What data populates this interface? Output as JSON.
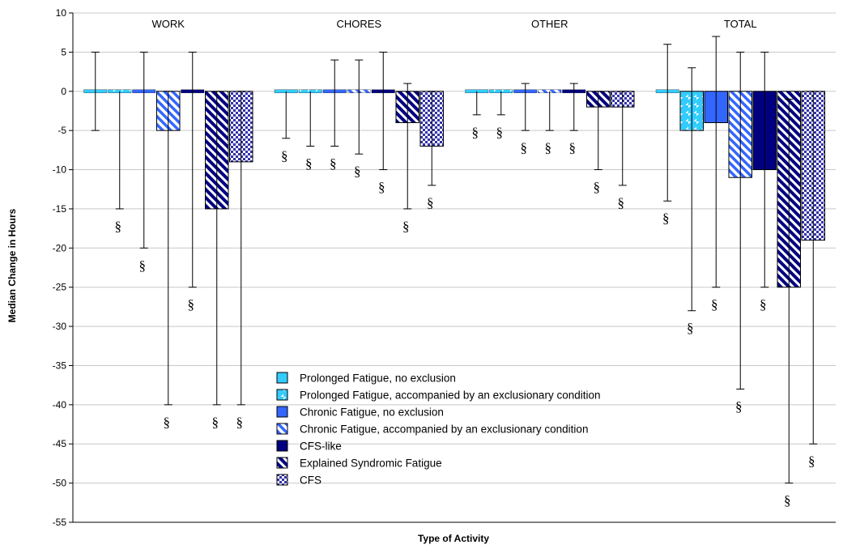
{
  "chart_data": {
    "type": "bar",
    "ylabel": "Median Change in Hours",
    "xlabel": "Type of Activity",
    "ylim": [
      -55,
      10
    ],
    "yticks": [
      10,
      5,
      0,
      -5,
      -10,
      -15,
      -20,
      -25,
      -30,
      -35,
      -40,
      -45,
      -50,
      -55
    ],
    "grid": true,
    "legend_position": "bottom-center",
    "categories": [
      "WORK",
      "CHORES",
      "OTHER",
      "TOTAL"
    ],
    "significance_marker": "§",
    "series": [
      {
        "name": "Prolonged Fatigue, no exclusion",
        "fill": "solid",
        "color": "#33ccff",
        "values": [
          0,
          0,
          0,
          0
        ],
        "error_low": [
          -5,
          -6,
          -3,
          -14
        ],
        "error_high": [
          5,
          0,
          0,
          6
        ],
        "significant": [
          false,
          true,
          true,
          true
        ]
      },
      {
        "name": "Prolonged Fatigue, accompanied by an exclusionary condition",
        "fill": "hatch-light",
        "color": "#33ccff",
        "values": [
          0,
          0,
          0,
          -5
        ],
        "error_low": [
          -15,
          -7,
          -3,
          -28
        ],
        "error_high": [
          0,
          0,
          0,
          3
        ],
        "significant": [
          true,
          true,
          true,
          true
        ]
      },
      {
        "name": "Chronic Fatigue, no exclusion",
        "fill": "solid",
        "color": "#3366ff",
        "values": [
          0,
          0,
          0,
          -4
        ],
        "error_low": [
          -20,
          -7,
          -5,
          -25
        ],
        "error_high": [
          5,
          4,
          1,
          7
        ],
        "significant": [
          true,
          true,
          true,
          true
        ]
      },
      {
        "name": "Chronic Fatigue, accompanied by an exclusionary condition",
        "fill": "hatch-medium",
        "color": "#3366ff",
        "values": [
          -5,
          0,
          0,
          -11
        ],
        "error_low": [
          -40,
          -8,
          -5,
          -38
        ],
        "error_high": [
          0,
          4,
          0,
          5
        ],
        "significant": [
          true,
          true,
          true,
          true
        ]
      },
      {
        "name": "CFS-like",
        "fill": "solid",
        "color": "#000080",
        "values": [
          0,
          0,
          0,
          -10
        ],
        "error_low": [
          -25,
          -10,
          -5,
          -25
        ],
        "error_high": [
          5,
          5,
          1,
          5
        ],
        "significant": [
          true,
          true,
          true,
          true
        ]
      },
      {
        "name": "Explained Syndromic Fatigue",
        "fill": "hatch-dark",
        "color": "#000080",
        "values": [
          -15,
          -4,
          -2,
          -25
        ],
        "error_low": [
          -40,
          -15,
          -10,
          -50
        ],
        "error_high": [
          0,
          1,
          0,
          -1
        ],
        "significant": [
          true,
          true,
          true,
          true
        ]
      },
      {
        "name": "CFS",
        "fill": "check",
        "color": "#3333aa",
        "values": [
          -9,
          -7,
          -2,
          -19
        ],
        "error_low": [
          -40,
          -12,
          -12,
          -45
        ],
        "error_high": [
          0,
          0,
          0,
          0
        ],
        "significant": [
          true,
          true,
          true,
          true
        ]
      }
    ]
  }
}
